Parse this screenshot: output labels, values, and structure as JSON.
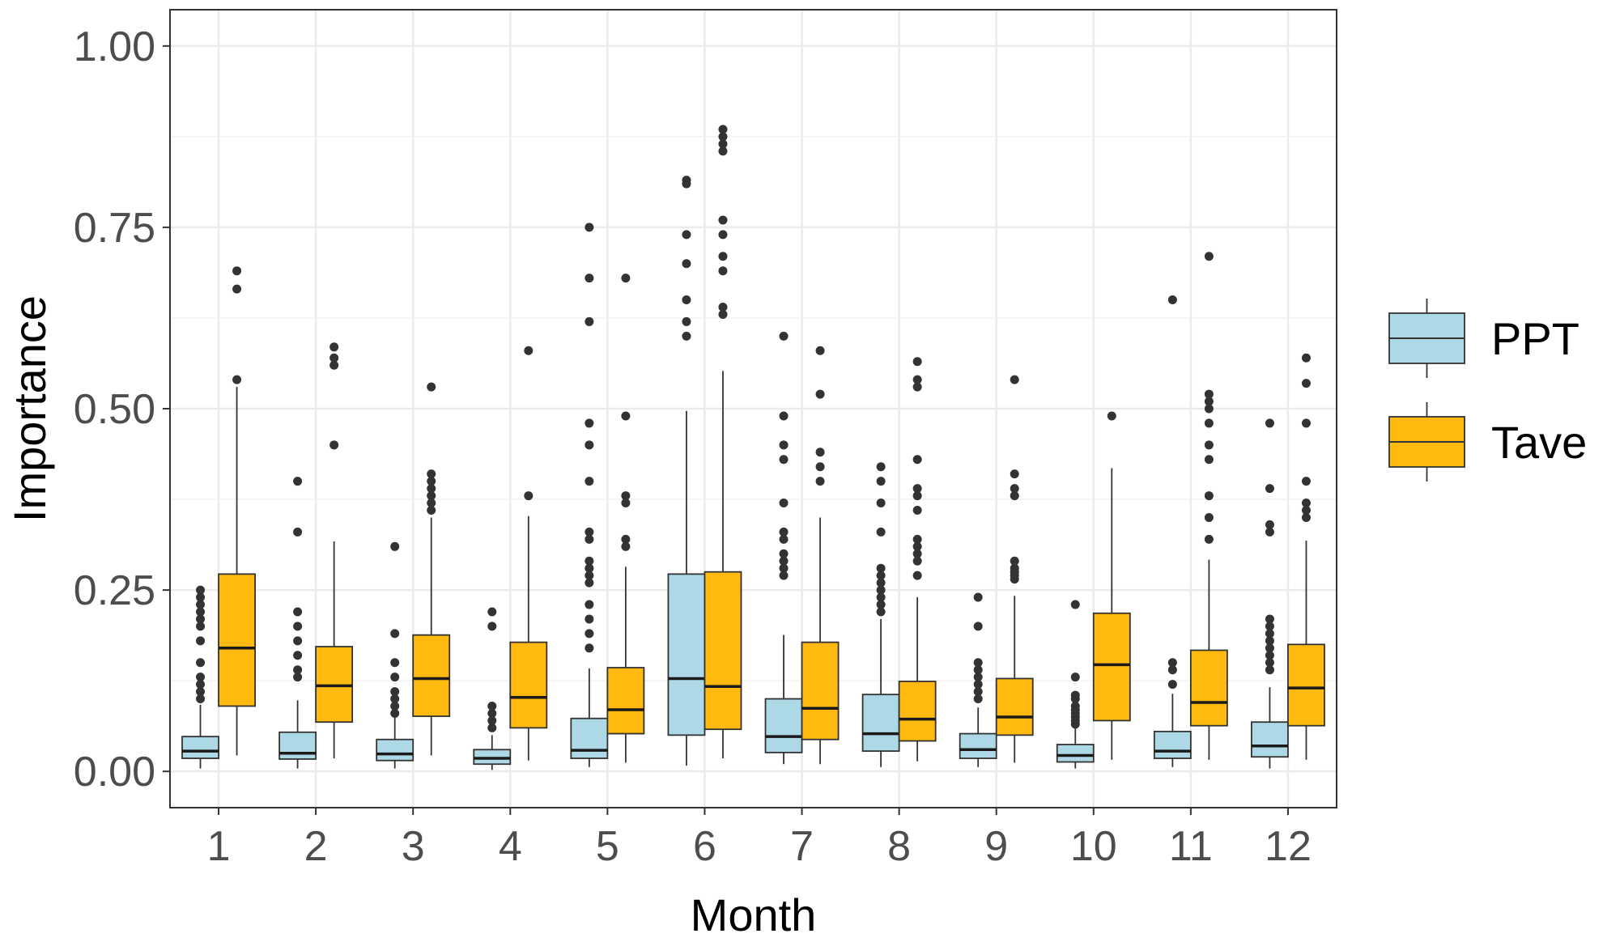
{
  "chart_data": {
    "type": "boxplot",
    "xlabel": "Month",
    "ylabel": "Importance",
    "ylim": [
      -0.05,
      1.05
    ],
    "yticks": [
      0.0,
      0.25,
      0.5,
      0.75,
      1.0
    ],
    "ytick_labels": [
      "0.00",
      "0.25",
      "0.50",
      "0.75",
      "1.00"
    ],
    "categories": [
      "1",
      "2",
      "3",
      "4",
      "5",
      "6",
      "7",
      "8",
      "9",
      "10",
      "11",
      "12"
    ],
    "grid": true,
    "legend_position": "right",
    "series": [
      {
        "name": "PPT",
        "color": "#add8e6",
        "boxes": [
          {
            "min": 0.004,
            "q1": 0.018,
            "median": 0.028,
            "q3": 0.048,
            "max": 0.092,
            "outliers": [
              0.1,
              0.11,
              0.12,
              0.13,
              0.15,
              0.18,
              0.2,
              0.21,
              0.22,
              0.23,
              0.24,
              0.25
            ]
          },
          {
            "min": 0.004,
            "q1": 0.017,
            "median": 0.025,
            "q3": 0.054,
            "max": 0.098,
            "outliers": [
              0.13,
              0.14,
              0.16,
              0.18,
              0.2,
              0.22,
              0.33,
              0.4
            ]
          },
          {
            "min": 0.004,
            "q1": 0.015,
            "median": 0.024,
            "q3": 0.044,
            "max": 0.075,
            "outliers": [
              0.08,
              0.09,
              0.1,
              0.11,
              0.13,
              0.15,
              0.19,
              0.31
            ]
          },
          {
            "min": 0.002,
            "q1": 0.01,
            "median": 0.018,
            "q3": 0.03,
            "max": 0.05,
            "outliers": [
              0.06,
              0.07,
              0.08,
              0.09,
              0.2,
              0.22
            ]
          },
          {
            "min": 0.006,
            "q1": 0.018,
            "median": 0.029,
            "q3": 0.073,
            "max": 0.142,
            "outliers": [
              0.17,
              0.19,
              0.21,
              0.23,
              0.26,
              0.27,
              0.28,
              0.29,
              0.32,
              0.33,
              0.4,
              0.45,
              0.48,
              0.62,
              0.68,
              0.75
            ]
          },
          {
            "min": 0.008,
            "q1": 0.05,
            "median": 0.128,
            "q3": 0.272,
            "max": 0.497,
            "outliers": [
              0.6,
              0.62,
              0.65,
              0.7,
              0.74,
              0.81,
              0.815
            ]
          },
          {
            "min": 0.01,
            "q1": 0.026,
            "median": 0.048,
            "q3": 0.1,
            "max": 0.188,
            "outliers": [
              0.27,
              0.28,
              0.29,
              0.3,
              0.32,
              0.33,
              0.37,
              0.43,
              0.45,
              0.49,
              0.6
            ]
          },
          {
            "min": 0.006,
            "q1": 0.028,
            "median": 0.052,
            "q3": 0.106,
            "max": 0.21,
            "outliers": [
              0.22,
              0.23,
              0.24,
              0.25,
              0.26,
              0.27,
              0.28,
              0.33,
              0.37,
              0.4,
              0.42
            ]
          },
          {
            "min": 0.006,
            "q1": 0.018,
            "median": 0.03,
            "q3": 0.052,
            "max": 0.088,
            "outliers": [
              0.1,
              0.11,
              0.12,
              0.13,
              0.14,
              0.15,
              0.2,
              0.24
            ]
          },
          {
            "min": 0.004,
            "q1": 0.013,
            "median": 0.022,
            "q3": 0.037,
            "max": 0.06,
            "outliers": [
              0.065,
              0.07,
              0.075,
              0.08,
              0.085,
              0.09,
              0.1,
              0.105,
              0.13,
              0.23
            ]
          },
          {
            "min": 0.006,
            "q1": 0.018,
            "median": 0.028,
            "q3": 0.055,
            "max": 0.107,
            "outliers": [
              0.12,
              0.14,
              0.15,
              0.65
            ]
          },
          {
            "min": 0.004,
            "q1": 0.02,
            "median": 0.035,
            "q3": 0.068,
            "max": 0.116,
            "outliers": [
              0.14,
              0.15,
              0.16,
              0.17,
              0.18,
              0.19,
              0.2,
              0.21,
              0.33,
              0.34,
              0.39,
              0.48
            ]
          }
        ]
      },
      {
        "name": "Tave",
        "color": "#ffb90f",
        "boxes": [
          {
            "min": 0.022,
            "q1": 0.09,
            "median": 0.17,
            "q3": 0.272,
            "max": 0.53,
            "outliers": [
              0.54,
              0.665,
              0.69
            ]
          },
          {
            "min": 0.018,
            "q1": 0.068,
            "median": 0.118,
            "q3": 0.172,
            "max": 0.317,
            "outliers": [
              0.45,
              0.56,
              0.57,
              0.585
            ]
          },
          {
            "min": 0.022,
            "q1": 0.076,
            "median": 0.128,
            "q3": 0.188,
            "max": 0.35,
            "outliers": [
              0.36,
              0.37,
              0.38,
              0.39,
              0.4,
              0.41,
              0.53
            ]
          },
          {
            "min": 0.015,
            "q1": 0.06,
            "median": 0.102,
            "q3": 0.178,
            "max": 0.352,
            "outliers": [
              0.38,
              0.58
            ]
          },
          {
            "min": 0.012,
            "q1": 0.052,
            "median": 0.085,
            "q3": 0.143,
            "max": 0.282,
            "outliers": [
              0.31,
              0.32,
              0.37,
              0.38,
              0.49,
              0.68
            ]
          },
          {
            "min": 0.018,
            "q1": 0.058,
            "median": 0.117,
            "q3": 0.275,
            "max": 0.552,
            "outliers": [
              0.63,
              0.64,
              0.69,
              0.71,
              0.74,
              0.76,
              0.855,
              0.865,
              0.875,
              0.885
            ]
          },
          {
            "min": 0.01,
            "q1": 0.044,
            "median": 0.087,
            "q3": 0.178,
            "max": 0.35,
            "outliers": [
              0.4,
              0.42,
              0.44,
              0.52,
              0.58
            ]
          },
          {
            "min": 0.014,
            "q1": 0.042,
            "median": 0.072,
            "q3": 0.124,
            "max": 0.24,
            "outliers": [
              0.27,
              0.29,
              0.3,
              0.31,
              0.32,
              0.36,
              0.38,
              0.39,
              0.43,
              0.53,
              0.54,
              0.565
            ]
          },
          {
            "min": 0.012,
            "q1": 0.05,
            "median": 0.075,
            "q3": 0.128,
            "max": 0.242,
            "outliers": [
              0.265,
              0.27,
              0.275,
              0.28,
              0.29,
              0.38,
              0.39,
              0.41,
              0.54
            ]
          },
          {
            "min": 0.016,
            "q1": 0.07,
            "median": 0.147,
            "q3": 0.218,
            "max": 0.418,
            "outliers": [
              0.49
            ]
          },
          {
            "min": 0.016,
            "q1": 0.063,
            "median": 0.095,
            "q3": 0.167,
            "max": 0.292,
            "outliers": [
              0.32,
              0.35,
              0.38,
              0.43,
              0.45,
              0.48,
              0.5,
              0.51,
              0.52,
              0.71
            ]
          },
          {
            "min": 0.016,
            "q1": 0.063,
            "median": 0.115,
            "q3": 0.175,
            "max": 0.318,
            "outliers": [
              0.35,
              0.36,
              0.37,
              0.4,
              0.48,
              0.535,
              0.57
            ]
          }
        ]
      }
    ]
  }
}
